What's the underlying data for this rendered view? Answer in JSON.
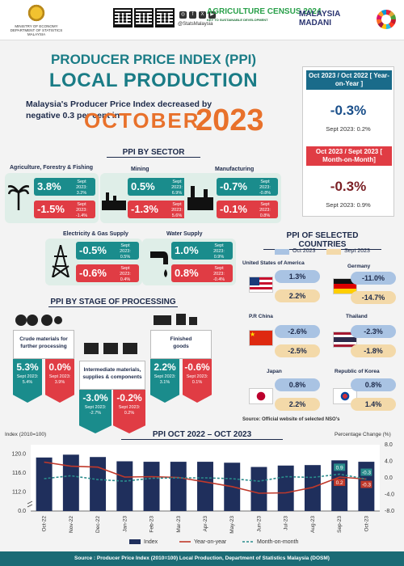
{
  "header": {
    "ministry_line1": "MINISTRY OF ECONOMY",
    "ministry_line2": "DEPARTMENT OF STATISTICS MALAYSIA",
    "handle": "@StatsMalaysia",
    "agri_title": "AGRICULTURE CENSUS 2024",
    "agri_sub": "KEY TO SUSTAINABLE DEVELOPMENT",
    "madani_line1": "MALAYSIA",
    "madani_line2": "MADANI"
  },
  "title": {
    "line1": "PRODUCER PRICE INDEX (PPI)",
    "line2": "LOCAL PRODUCTION",
    "subtitle": "Malaysia's Producer Price Index decreased by negative 0.3 per cent in",
    "month": "OCTOBER",
    "year": "2023"
  },
  "yoy": {
    "head": "Oct 2023 / Oct 2022 [ Year-on-Year ]",
    "value": "-0.3%",
    "note": "Sept 2023: 0.2%"
  },
  "mom": {
    "head": "Oct 2023 / Sept 2023 [ Month-on-Month]",
    "value": "-0.3%",
    "note": "Sept 2023: 0.9%"
  },
  "sector": {
    "heading": "PPI BY SECTOR",
    "items": [
      {
        "label": "Agriculture, Forestry & Fishing",
        "yoy": "3.8%",
        "yoy_note": "Sept 2023: 3.2%",
        "mom": "-1.5%",
        "mom_note": "Sept 2023: -1.4%"
      },
      {
        "label": "Mining",
        "yoy": "0.5%",
        "yoy_note": "Sept 2023: 6.9%",
        "mom": "-1.3%",
        "mom_note": "Sept 2023: 5.6%"
      },
      {
        "label": "Manufacturing",
        "yoy": "-0.7%",
        "yoy_note": "Sept 2023: -0.8%",
        "mom": "-0.1%",
        "mom_note": "Sept 2023: 0.8%"
      },
      {
        "label": "Electricity & Gas Supply",
        "yoy": "-0.5%",
        "yoy_note": "Sept 2023: 0.5%",
        "mom": "-0.6%",
        "mom_note": "Sept 2023: 0.4%"
      },
      {
        "label": "Water Supply",
        "yoy": "1.0%",
        "yoy_note": "Sept 2023: 0.9%",
        "mom": "0.8%",
        "mom_note": "Sept 2023: -0.4%"
      }
    ]
  },
  "countries": {
    "heading": "PPI OF SELECTED COUNTRIES",
    "legend_oct": "Oct 2023",
    "legend_sep": "Sept 2023",
    "items": [
      {
        "name": "United States of America",
        "oct": "1.3%",
        "sep": "2.2%"
      },
      {
        "name": "Germany",
        "oct": "-11.0%",
        "sep": "-14.7%"
      },
      {
        "name": "P.R China",
        "oct": "-2.6%",
        "sep": "-2.5%"
      },
      {
        "name": "Thailand",
        "oct": "-2.3%",
        "sep": "-1.8%"
      },
      {
        "name": "Japan",
        "oct": "0.8%",
        "sep": "2.2%"
      },
      {
        "name": "Republic of Korea",
        "oct": "0.8%",
        "sep": "1.4%"
      }
    ],
    "source": "Source: Official website of selected NSO's"
  },
  "stages": {
    "heading": "PPI BY STAGE OF PROCESSING",
    "items": [
      {
        "label": "Crude materials for further processing",
        "yoy": "5.3%",
        "yoy_note": "Sept 2023: 5.4%",
        "mom": "0.0%",
        "mom_note": "Sept 2023: 3.9%"
      },
      {
        "label": "Intermediate materials, supplies & components",
        "yoy": "-3.0%",
        "yoy_note": "Sept 2023: -2.7%",
        "mom": "-0.2%",
        "mom_note": "Sept 2023: 0.2%"
      },
      {
        "label": "Finished goods",
        "yoy": "2.2%",
        "yoy_note": "Sept 2023: 3.1%",
        "mom": "-0.6%",
        "mom_note": "Sept 2023: 0.1%"
      }
    ]
  },
  "chart_data": {
    "type": "bar",
    "title": "PPI OCT 2022 – OCT 2023",
    "ylabel": "Index (2010=100)",
    "y2label": "Percentage Change (%)",
    "categories": [
      "Oct-22",
      "Nov-22",
      "Dec-22",
      "Jan-23",
      "Feb-23",
      "Mar-23",
      "Apr-23",
      "May-23",
      "Jun-23",
      "Jul-23",
      "Aug-23",
      "Sep-23",
      "Oct-23"
    ],
    "yticks": [
      "120.0",
      "116.0",
      "112.0",
      "0.0"
    ],
    "y2ticks": [
      "8.0",
      "4.0",
      "0.0",
      "-4.0",
      "-8.0"
    ],
    "y_axis_break": true,
    "ylim": [
      108,
      122
    ],
    "y2lim": [
      -8,
      8
    ],
    "series": [
      {
        "name": "Index",
        "kind": "bar",
        "color": "#1f2f5c",
        "values": [
          119.3,
          119.9,
          119.4,
          118.5,
          118.4,
          118.4,
          118.4,
          118.2,
          117.3,
          117.6,
          117.7,
          118.7,
          118.4
        ]
      },
      {
        "name": "Year-on-year",
        "kind": "line",
        "color": "#c0392b",
        "values": [
          3.8,
          2.8,
          2.6,
          0.2,
          0.3,
          0.1,
          -1.0,
          -2.1,
          -3.7,
          -3.6,
          -2.3,
          0.2,
          -0.3
        ]
      },
      {
        "name": "Month-on-month",
        "kind": "line",
        "color": "#2a8c8c",
        "dashed": true,
        "values": [
          -0.2,
          0.5,
          -0.4,
          -0.8,
          -0.1,
          0.0,
          0.0,
          -0.2,
          -0.8,
          0.3,
          0.1,
          0.9,
          -0.3
        ]
      }
    ],
    "labels": [
      {
        "series": "Month-on-month",
        "category": "Sep-23",
        "text": "0.9"
      },
      {
        "series": "Year-on-year",
        "category": "Sep-23",
        "text": "0.2"
      },
      {
        "series": "Month-on-month",
        "category": "Oct-23",
        "text": "-0.3"
      },
      {
        "series": "Year-on-year",
        "category": "Oct-23",
        "text": "-0.3"
      }
    ],
    "legend": [
      "Index",
      "Year-on-year",
      "Month-on-month"
    ],
    "legend_position": "bottom",
    "grid": false
  },
  "footer": {
    "source": "Source : Producer Price Index (2010=100) Local Production, Department of Statistics Malaysia (DOSM)"
  },
  "colors": {
    "teal": "#1a8c8c",
    "red": "#e03c44",
    "orange": "#e8712b",
    "navy": "#1f2f5c"
  }
}
